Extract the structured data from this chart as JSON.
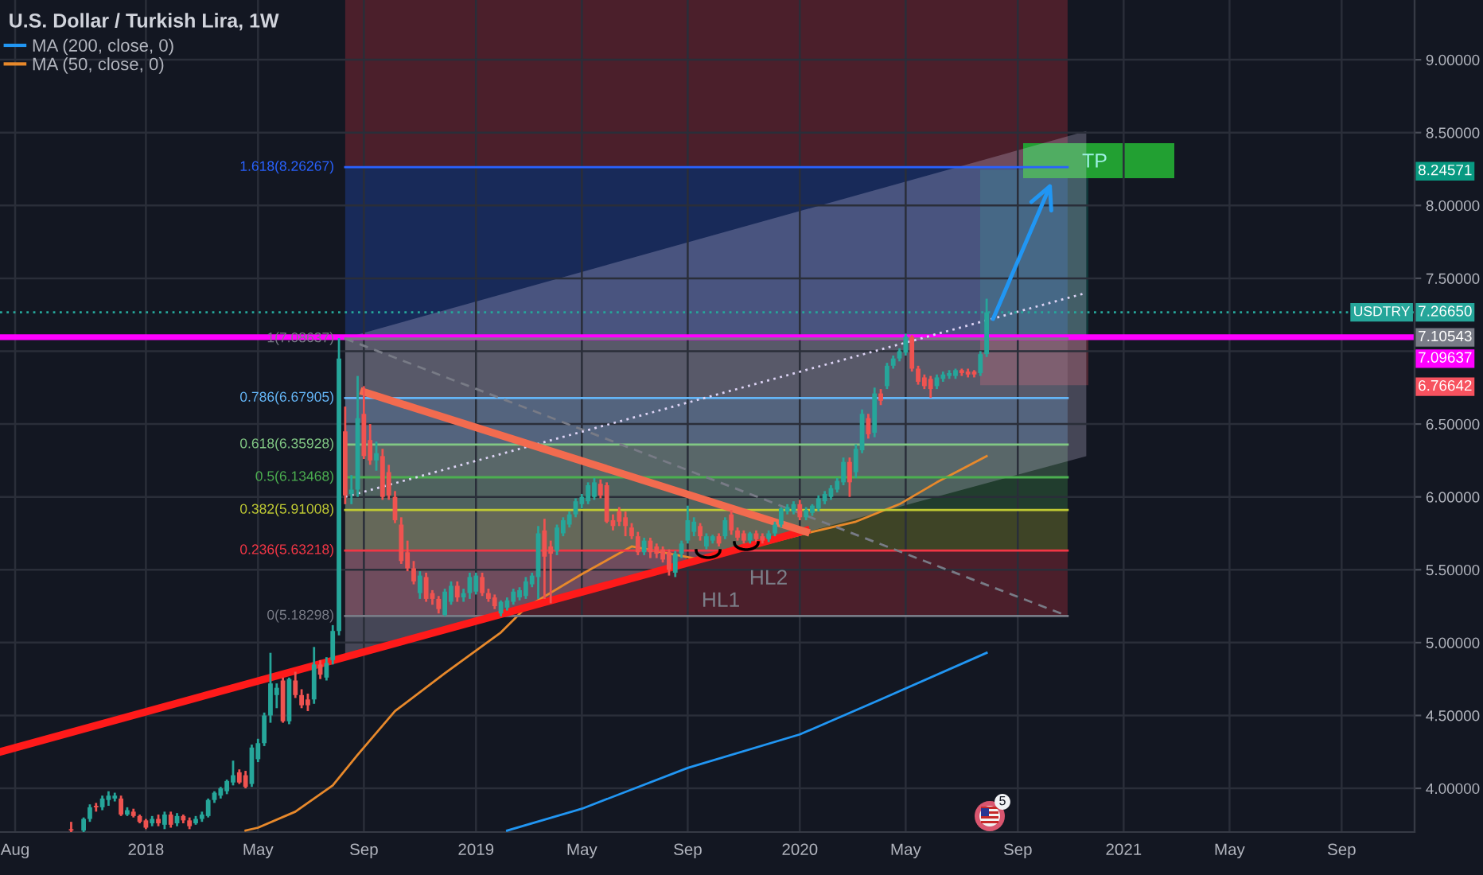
{
  "chart_data": {
    "type": "candlestick",
    "title": "U.S. Dollar / Turkish Lira, 1W",
    "xlim": [
      "2017-07-21",
      "2021-11-27"
    ],
    "xticks": [
      {
        "value": "2017-08-07",
        "label": "Aug"
      },
      {
        "value": "2018-01-01",
        "label": "2018"
      },
      {
        "value": "2018-05-07",
        "label": "May"
      },
      {
        "value": "2018-09-03",
        "label": "Sep"
      },
      {
        "value": "2019-01-07",
        "label": "2019"
      },
      {
        "value": "2019-05-06",
        "label": "May"
      },
      {
        "value": "2019-09-02",
        "label": "Sep"
      },
      {
        "value": "2020-01-06",
        "label": "2020"
      },
      {
        "value": "2020-05-04",
        "label": "May"
      },
      {
        "value": "2020-09-07",
        "label": "Sep"
      },
      {
        "value": "2021-01-04",
        "label": "2021"
      },
      {
        "value": "2021-05-03",
        "label": "May"
      },
      {
        "value": "2021-09-06",
        "label": "Sep"
      }
    ],
    "ylim": [
      3.7,
      9.41
    ],
    "yticks": [
      {
        "value": 4,
        "label": "4.00000"
      },
      {
        "value": 4.5,
        "label": "4.50000"
      },
      {
        "value": 5,
        "label": "5.00000"
      },
      {
        "value": 5.5,
        "label": "5.50000"
      },
      {
        "value": 6,
        "label": "6.00000"
      },
      {
        "value": 6.5,
        "label": "6.50000"
      },
      {
        "value": 7,
        "label": null
      },
      {
        "value": 7.5,
        "label": "7.50000"
      },
      {
        "value": 8,
        "label": "8.00000"
      },
      {
        "value": 8.5,
        "label": "8.50000"
      },
      {
        "value": 9,
        "label": "9.00000"
      }
    ],
    "y2lim": [
      3.7,
      9.41
    ],
    "y2ticks": [
      8.24571,
      7.10543,
      6.76642
    ],
    "grid": true,
    "legend": "top left",
    "series": [
      {
        "name": "USDTRY",
        "x": [
          "2017-10-09",
          "2017-10-23",
          "2017-10-30",
          "2017-11-06",
          "2017-11-13",
          "2017-11-20",
          "2017-11-27",
          "2017-12-04",
          "2017-12-11",
          "2017-12-18",
          "2017-12-25",
          "2018-01-01",
          "2018-01-08",
          "2018-01-15",
          "2018-01-22",
          "2018-01-29",
          "2018-02-05",
          "2018-02-12",
          "2018-02-19",
          "2018-02-26",
          "2018-03-05",
          "2018-03-12",
          "2018-03-19",
          "2018-03-26",
          "2018-04-02",
          "2018-04-09",
          "2018-04-16",
          "2018-04-23",
          "2018-04-30",
          "2018-05-07",
          "2018-05-14",
          "2018-05-21",
          "2018-05-28",
          "2018-06-04",
          "2018-06-11",
          "2018-06-18",
          "2018-06-25",
          "2018-07-02",
          "2018-07-09",
          "2018-07-16",
          "2018-07-23",
          "2018-07-30",
          "2018-08-06",
          "2018-08-13",
          "2018-08-20",
          "2018-08-27",
          "2018-09-03",
          "2018-09-10",
          "2018-09-17",
          "2018-09-24",
          "2018-10-01",
          "2018-10-08",
          "2018-10-15",
          "2018-10-22",
          "2018-10-29",
          "2018-11-05",
          "2018-11-12",
          "2018-11-19",
          "2018-11-26",
          "2018-12-03",
          "2018-12-10",
          "2018-12-17",
          "2018-12-24",
          "2018-12-31",
          "2019-01-07",
          "2019-01-14",
          "2019-01-21",
          "2019-01-28",
          "2019-02-04",
          "2019-02-11",
          "2019-02-18",
          "2019-02-25",
          "2019-03-04",
          "2019-03-11",
          "2019-03-18",
          "2019-03-25",
          "2019-04-01",
          "2019-04-08",
          "2019-04-15",
          "2019-04-22",
          "2019-04-29",
          "2019-05-06",
          "2019-05-13",
          "2019-05-20",
          "2019-05-27",
          "2019-06-03",
          "2019-06-10",
          "2019-06-17",
          "2019-06-24",
          "2019-07-01",
          "2019-07-08",
          "2019-07-15",
          "2019-07-22",
          "2019-07-29",
          "2019-08-05",
          "2019-08-12",
          "2019-08-19",
          "2019-08-26",
          "2019-09-02",
          "2019-09-09",
          "2019-09-16",
          "2019-09-23",
          "2019-09-30",
          "2019-10-07",
          "2019-10-14",
          "2019-10-21",
          "2019-10-28",
          "2019-11-04",
          "2019-11-11",
          "2019-11-18",
          "2019-11-25",
          "2019-12-02",
          "2019-12-09",
          "2019-12-16",
          "2019-12-23",
          "2019-12-30",
          "2020-01-06",
          "2020-01-13",
          "2020-01-20",
          "2020-01-27",
          "2020-02-03",
          "2020-02-10",
          "2020-02-17",
          "2020-02-24",
          "2020-03-02",
          "2020-03-09",
          "2020-03-16",
          "2020-03-23",
          "2020-03-30",
          "2020-04-06",
          "2020-04-13",
          "2020-04-20",
          "2020-04-27",
          "2020-05-04",
          "2020-05-11",
          "2020-05-18",
          "2020-05-25",
          "2020-06-01",
          "2020-06-08",
          "2020-06-15",
          "2020-06-22",
          "2020-06-29",
          "2020-07-06",
          "2020-07-13",
          "2020-07-20",
          "2020-07-27",
          "2020-08-03"
        ],
        "ohlc": [
          [
            3.72,
            3.77,
            3.7,
            3.71
          ],
          [
            3.71,
            3.8,
            3.7,
            3.79
          ],
          [
            3.79,
            3.89,
            3.77,
            3.87
          ],
          [
            3.88,
            3.9,
            3.84,
            3.87
          ],
          [
            3.87,
            3.95,
            3.85,
            3.93
          ],
          [
            3.92,
            3.98,
            3.88,
            3.95
          ],
          [
            3.93,
            3.97,
            3.91,
            3.95
          ],
          [
            3.93,
            3.95,
            3.81,
            3.82
          ],
          [
            3.82,
            3.87,
            3.81,
            3.85
          ],
          [
            3.84,
            3.86,
            3.8,
            3.81
          ],
          [
            3.81,
            3.82,
            3.76,
            3.77
          ],
          [
            3.78,
            3.79,
            3.72,
            3.73
          ],
          [
            3.76,
            3.81,
            3.74,
            3.79
          ],
          [
            3.79,
            3.82,
            3.74,
            3.76
          ],
          [
            3.75,
            3.84,
            3.72,
            3.82
          ],
          [
            3.82,
            3.84,
            3.73,
            3.75
          ],
          [
            3.76,
            3.83,
            3.74,
            3.81
          ],
          [
            3.81,
            3.82,
            3.76,
            3.78
          ],
          [
            3.78,
            3.8,
            3.72,
            3.74
          ],
          [
            3.76,
            3.81,
            3.75,
            3.79
          ],
          [
            3.79,
            3.84,
            3.77,
            3.82
          ],
          [
            3.81,
            3.93,
            3.8,
            3.92
          ],
          [
            3.92,
            3.98,
            3.9,
            3.97
          ],
          [
            3.95,
            4.01,
            3.93,
            4.0
          ],
          [
            3.98,
            4.06,
            3.96,
            4.05
          ],
          [
            4.04,
            4.19,
            4.02,
            4.09
          ],
          [
            4.11,
            4.13,
            4.03,
            4.04
          ],
          [
            4.09,
            4.12,
            4.0,
            4.01
          ],
          [
            4.03,
            4.3,
            4.01,
            4.28
          ],
          [
            4.2,
            4.34,
            4.18,
            4.31
          ],
          [
            4.31,
            4.52,
            4.29,
            4.5
          ],
          [
            4.5,
            4.93,
            4.45,
            4.72
          ],
          [
            4.64,
            4.72,
            4.55,
            4.69
          ],
          [
            4.74,
            4.76,
            4.45,
            4.46
          ],
          [
            4.46,
            4.76,
            4.44,
            4.75
          ],
          [
            4.74,
            4.8,
            4.62,
            4.64
          ],
          [
            4.64,
            4.68,
            4.55,
            4.57
          ],
          [
            4.61,
            4.65,
            4.53,
            4.57
          ],
          [
            4.61,
            4.97,
            4.58,
            4.85
          ],
          [
            4.85,
            4.88,
            4.75,
            4.78
          ],
          [
            4.76,
            4.9,
            4.74,
            4.86
          ],
          [
            4.88,
            5.12,
            4.85,
            5.08
          ],
          [
            5.08,
            7.09,
            5.05,
            6.95
          ],
          [
            6.45,
            6.62,
            5.95,
            6.01
          ],
          [
            6.02,
            6.15,
            5.95,
            6.05
          ],
          [
            6.05,
            6.83,
            6.0,
            6.54
          ],
          [
            6.57,
            6.76,
            6.26,
            6.28
          ],
          [
            6.39,
            6.5,
            6.22,
            6.25
          ],
          [
            6.25,
            6.38,
            6.18,
            6.3
          ],
          [
            6.28,
            6.33,
            5.98,
            6.0
          ],
          [
            6.17,
            6.22,
            5.98,
            6.01
          ],
          [
            6.0,
            6.04,
            5.82,
            5.84
          ],
          [
            5.81,
            5.86,
            5.54,
            5.56
          ],
          [
            5.62,
            5.7,
            5.49,
            5.51
          ],
          [
            5.51,
            5.56,
            5.4,
            5.42
          ],
          [
            5.34,
            5.49,
            5.3,
            5.46
          ],
          [
            5.45,
            5.48,
            5.28,
            5.3
          ],
          [
            5.34,
            5.36,
            5.26,
            5.3
          ],
          [
            5.3,
            5.32,
            5.2,
            5.23
          ],
          [
            5.19,
            5.37,
            5.18,
            5.35
          ],
          [
            5.28,
            5.42,
            5.26,
            5.39
          ],
          [
            5.39,
            5.42,
            5.28,
            5.31
          ],
          [
            5.31,
            5.37,
            5.28,
            5.34
          ],
          [
            5.34,
            5.48,
            5.3,
            5.45
          ],
          [
            5.35,
            5.48,
            5.33,
            5.46
          ],
          [
            5.45,
            5.48,
            5.32,
            5.34
          ],
          [
            5.34,
            5.37,
            5.28,
            5.3
          ],
          [
            5.31,
            5.33,
            5.23,
            5.25
          ],
          [
            5.2,
            5.29,
            5.18,
            5.28
          ],
          [
            5.24,
            5.31,
            5.22,
            5.29
          ],
          [
            5.28,
            5.37,
            5.26,
            5.35
          ],
          [
            5.31,
            5.38,
            5.29,
            5.36
          ],
          [
            5.32,
            5.45,
            5.3,
            5.42
          ],
          [
            5.4,
            5.48,
            5.38,
            5.46
          ],
          [
            5.45,
            5.8,
            5.3,
            5.75
          ],
          [
            5.77,
            5.85,
            5.3,
            5.59
          ],
          [
            5.66,
            5.7,
            5.27,
            5.61
          ],
          [
            5.63,
            5.81,
            5.6,
            5.79
          ],
          [
            5.75,
            5.86,
            5.73,
            5.84
          ],
          [
            5.81,
            5.9,
            5.79,
            5.88
          ],
          [
            5.88,
            5.99,
            5.86,
            5.97
          ],
          [
            5.95,
            6.02,
            5.92,
            6.0
          ],
          [
            5.97,
            6.1,
            5.95,
            6.08
          ],
          [
            6.0,
            6.13,
            5.98,
            6.1
          ],
          [
            6.09,
            6.12,
            5.99,
            6.01
          ],
          [
            6.08,
            6.1,
            5.82,
            5.83
          ],
          [
            5.84,
            5.88,
            5.77,
            5.8
          ],
          [
            5.9,
            5.93,
            5.8,
            5.83
          ],
          [
            5.86,
            5.9,
            5.73,
            5.8
          ],
          [
            5.79,
            5.82,
            5.71,
            5.73
          ],
          [
            5.73,
            5.76,
            5.6,
            5.62
          ],
          [
            5.62,
            5.72,
            5.6,
            5.7
          ],
          [
            5.7,
            5.72,
            5.58,
            5.62
          ],
          [
            5.66,
            5.68,
            5.58,
            5.61
          ],
          [
            5.64,
            5.66,
            5.55,
            5.57
          ],
          [
            5.62,
            5.64,
            5.46,
            5.5
          ],
          [
            5.48,
            5.63,
            5.45,
            5.61
          ],
          [
            5.61,
            5.7,
            5.58,
            5.68
          ],
          [
            5.7,
            5.94,
            5.68,
            5.84
          ],
          [
            5.76,
            5.86,
            5.73,
            5.83
          ],
          [
            5.8,
            5.82,
            5.7,
            5.73
          ],
          [
            5.66,
            5.75,
            5.64,
            5.73
          ],
          [
            5.7,
            5.74,
            5.68,
            5.73
          ],
          [
            5.73,
            5.75,
            5.66,
            5.68
          ],
          [
            5.73,
            5.86,
            5.71,
            5.84
          ],
          [
            5.88,
            5.91,
            5.74,
            5.77
          ],
          [
            5.77,
            5.79,
            5.7,
            5.72
          ],
          [
            5.75,
            5.77,
            5.68,
            5.7
          ],
          [
            5.7,
            5.76,
            5.68,
            5.75
          ],
          [
            5.75,
            5.77,
            5.69,
            5.71
          ],
          [
            5.73,
            5.75,
            5.68,
            5.7
          ],
          [
            5.71,
            5.77,
            5.69,
            5.75
          ],
          [
            5.75,
            5.83,
            5.73,
            5.81
          ],
          [
            5.81,
            5.93,
            5.79,
            5.92
          ],
          [
            5.9,
            5.95,
            5.88,
            5.93
          ],
          [
            5.9,
            5.97,
            5.88,
            5.95
          ],
          [
            5.95,
            5.98,
            5.84,
            5.86
          ],
          [
            5.86,
            5.93,
            5.84,
            5.91
          ],
          [
            5.89,
            5.95,
            5.87,
            5.94
          ],
          [
            5.92,
            6.01,
            5.9,
            5.99
          ],
          [
            5.97,
            6.04,
            5.95,
            6.02
          ],
          [
            6.0,
            6.08,
            5.98,
            6.06
          ],
          [
            6.05,
            6.13,
            6.03,
            6.11
          ],
          [
            6.1,
            6.27,
            6.08,
            6.24
          ],
          [
            6.24,
            6.27,
            6.0,
            6.1
          ],
          [
            6.17,
            6.36,
            6.13,
            6.33
          ],
          [
            6.32,
            6.6,
            6.3,
            6.57
          ],
          [
            6.54,
            6.57,
            6.4,
            6.43
          ],
          [
            6.44,
            6.75,
            6.41,
            6.71
          ],
          [
            6.71,
            6.74,
            6.63,
            6.66
          ],
          [
            6.76,
            6.92,
            6.74,
            6.9
          ],
          [
            6.9,
            6.97,
            6.88,
            6.95
          ],
          [
            6.95,
            7.02,
            6.93,
            7.0
          ],
          [
            6.99,
            7.12,
            6.97,
            7.1
          ],
          [
            7.1,
            7.11,
            6.86,
            6.88
          ],
          [
            6.88,
            6.9,
            6.77,
            6.79
          ],
          [
            6.82,
            6.84,
            6.74,
            6.76
          ],
          [
            6.81,
            6.83,
            6.68,
            6.74
          ],
          [
            6.76,
            6.84,
            6.74,
            6.82
          ],
          [
            6.81,
            6.86,
            6.79,
            6.84
          ],
          [
            6.83,
            6.87,
            6.81,
            6.85
          ],
          [
            6.83,
            6.88,
            6.81,
            6.87
          ],
          [
            6.87,
            6.88,
            6.83,
            6.85
          ],
          [
            6.86,
            6.88,
            6.82,
            6.84
          ],
          [
            6.86,
            6.87,
            6.82,
            6.84
          ],
          [
            6.85,
            7.0,
            6.83,
            6.98
          ],
          [
            6.98,
            7.36,
            6.96,
            7.2665
          ]
        ],
        "colors": [
          "#ef5350",
          "#26a69a",
          "#26a69a",
          "#ef5350",
          "#26a69a",
          "#26a69a",
          "#26a69a",
          "#ef5350",
          "#26a69a",
          "#ef5350",
          "#ef5350",
          "#ef5350",
          "#26a69a",
          "#ef5350",
          "#26a69a",
          "#ef5350",
          "#26a69a",
          "#ef5350",
          "#ef5350",
          "#26a69a",
          "#26a69a",
          "#26a69a",
          "#26a69a",
          "#26a69a",
          "#26a69a",
          "#26a69a",
          "#ef5350",
          "#ef5350",
          "#26a69a",
          "#26a69a",
          "#26a69a",
          "#26a69a",
          "#26a69a",
          "#ef5350",
          "#26a69a",
          "#ef5350",
          "#ef5350",
          "#ef5350",
          "#26a69a",
          "#ef5350",
          "#26a69a",
          "#26a69a",
          "#26a69a",
          "#ef5350",
          "#26a69a",
          "#26a69a",
          "#ef5350",
          "#ef5350",
          "#26a69a",
          "#ef5350",
          "#ef5350",
          "#ef5350",
          "#ef5350",
          "#ef5350",
          "#ef5350",
          "#26a69a",
          "#ef5350",
          "#ef5350",
          "#ef5350",
          "#26a69a",
          "#26a69a",
          "#ef5350",
          "#26a69a",
          "#26a69a",
          "#26a69a",
          "#ef5350",
          "#ef5350",
          "#ef5350",
          "#26a69a",
          "#26a69a",
          "#26a69a",
          "#26a69a",
          "#26a69a",
          "#26a69a",
          "#26a69a",
          "#ef5350",
          "#ef5350",
          "#26a69a",
          "#26a69a",
          "#26a69a",
          "#26a69a",
          "#26a69a",
          "#26a69a",
          "#26a69a",
          "#ef5350",
          "#ef5350",
          "#ef5350",
          "#ef5350",
          "#ef5350",
          "#ef5350",
          "#ef5350",
          "#26a69a",
          "#ef5350",
          "#ef5350",
          "#ef5350",
          "#ef5350",
          "#26a69a",
          "#26a69a",
          "#26a69a",
          "#26a69a",
          "#ef5350",
          "#26a69a",
          "#26a69a",
          "#ef5350",
          "#26a69a",
          "#ef5350",
          "#ef5350",
          "#ef5350",
          "#26a69a",
          "#ef5350",
          "#ef5350",
          "#26a69a",
          "#26a69a",
          "#26a69a",
          "#26a69a",
          "#26a69a",
          "#ef5350",
          "#26a69a",
          "#26a69a",
          "#26a69a",
          "#26a69a",
          "#26a69a",
          "#26a69a",
          "#26a69a",
          "#ef5350",
          "#26a69a",
          "#26a69a",
          "#ef5350",
          "#26a69a",
          "#ef5350",
          "#26a69a",
          "#26a69a",
          "#26a69a",
          "#26a69a",
          "#ef5350",
          "#ef5350",
          "#ef5350",
          "#ef5350",
          "#26a69a",
          "#26a69a",
          "#26a69a",
          "#26a69a",
          "#ef5350",
          "#ef5350",
          "#ef5350",
          "#26a69a",
          "#26a69a"
        ]
      },
      {
        "type": "line",
        "name": "MA (200, close, 0)",
        "color": "#2196f3",
        "x": [
          "2019-02-11",
          "2019-05-06",
          "2019-09-02",
          "2020-01-06",
          "2020-04-06",
          "2020-08-03"
        ],
        "values": [
          3.71,
          3.86,
          4.14,
          4.37,
          4.61,
          4.93
        ]
      },
      {
        "type": "line",
        "name": "MA (50, close, 0)",
        "color": "#e8892b",
        "x": [
          "2018-04-23",
          "2018-05-07",
          "2018-06-18",
          "2018-07-30",
          "2018-08-27",
          "2018-10-08",
          "2018-12-03",
          "2019-02-04",
          "2019-03-04",
          "2019-05-06",
          "2019-07-01",
          "2019-09-16",
          "2019-11-04",
          "2020-01-13",
          "2020-03-09",
          "2020-04-27",
          "2020-06-08",
          "2020-08-03"
        ],
        "values": [
          3.71,
          3.73,
          3.84,
          4.02,
          4.23,
          4.53,
          4.79,
          5.07,
          5.24,
          5.47,
          5.66,
          5.57,
          5.64,
          5.75,
          5.83,
          5.95,
          6.1,
          6.28
        ]
      },
      {
        "type": "line",
        "color": "#787b86",
        "x": [
          "2018-08-13",
          "2020-11-02"
        ],
        "values": [
          5.18298,
          5.18298
        ],
        "value_labels": [
          "0(5.18298)",
          null
        ]
      },
      {
        "type": "line",
        "color": "#f23645",
        "x": [
          "2018-08-13",
          "2020-11-02"
        ],
        "values": [
          5.63218,
          5.63218
        ],
        "value_labels": [
          "0.236(5.63218)",
          null
        ]
      },
      {
        "type": "line",
        "color": "#c0ca33",
        "x": [
          "2018-08-13",
          "2020-11-02"
        ],
        "values": [
          5.91008,
          5.91008
        ],
        "value_labels": [
          "0.382(5.91008)",
          null
        ]
      },
      {
        "type": "line",
        "color": "#4caf50",
        "x": [
          "2018-08-13",
          "2020-11-02"
        ],
        "values": [
          6.13468,
          6.13468
        ],
        "value_labels": [
          "0.5(6.13468)",
          null
        ]
      },
      {
        "type": "line",
        "color": "#81c784",
        "x": [
          "2018-08-13",
          "2020-11-02"
        ],
        "values": [
          6.35928,
          6.35928
        ],
        "value_labels": [
          "0.618(6.35928)",
          null
        ]
      },
      {
        "type": "line",
        "color": "#64b5f6",
        "x": [
          "2018-08-13",
          "2020-11-02"
        ],
        "values": [
          6.67905,
          6.67905
        ],
        "value_labels": [
          "0.786(6.67905)",
          null
        ]
      },
      {
        "type": "line",
        "color": "#787b86",
        "x": [
          "2018-08-13",
          "2020-11-02"
        ],
        "values": [
          7.08637,
          7.08637
        ],
        "value_labels": [
          "1(7.08637)",
          null
        ]
      },
      {
        "type": "line",
        "color": "#2962ff",
        "x": [
          "2018-08-13",
          "2020-11-02"
        ],
        "values": [
          8.26267,
          8.26267
        ],
        "value_labels": [
          "1.618(8.26267)",
          null
        ]
      },
      {
        "type": "line",
        "color": "#787b86",
        "line_style": "dashed",
        "x": [
          "2018-08-13",
          "2020-11-02"
        ],
        "values": [
          7.08637,
          5.18298
        ]
      },
      {
        "type": "line",
        "color": "#ddd4f5",
        "line_style": "dotted",
        "x": [
          "2018-08-13",
          "2020-11-23"
        ],
        "values": [
          6.0,
          7.4
        ],
        "lower": [
          4.9,
          6.28
        ],
        "upper": [
          7.09,
          8.51
        ]
      },
      {
        "type": "line",
        "color": "#ff1a1a",
        "x": [
          "2017-07-21",
          "2020-01-13"
        ],
        "values": [
          4.25,
          5.77
        ]
      },
      {
        "type": "line",
        "color": "#f26b4f",
        "x": [
          "2018-09-03",
          "2020-01-13"
        ],
        "values": [
          6.72,
          5.76
        ]
      }
    ],
    "ref_lines": [
      {
        "axis": "y",
        "value": 7.09637,
        "label": "7.09637",
        "color": "#ff00ff"
      },
      {
        "axis": "y",
        "value": 7.2665,
        "label": "7.26650",
        "color": "#26a69a",
        "line_style": "dotted"
      }
    ],
    "annotations": [
      "HL1",
      "HL2",
      "TP",
      "5"
    ]
  }
}
